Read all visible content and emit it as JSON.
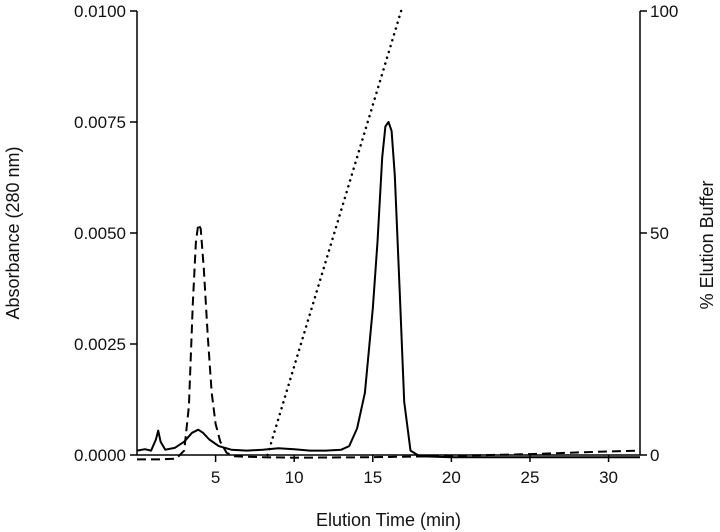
{
  "chart_data": {
    "type": "line",
    "xlabel": "Elution Time (min)",
    "ylabel_left": "Absorbance (280 nm)",
    "ylabel_right": "% Elution Buffer",
    "xlim": [
      0,
      32
    ],
    "ylim_left": [
      0,
      0.01
    ],
    "ylim_right": [
      0,
      100
    ],
    "grid": false,
    "x_ticks": [
      5,
      10,
      15,
      20,
      25,
      30
    ],
    "x_tick_labels": [
      "5",
      "10",
      "15",
      "20",
      "25",
      "30"
    ],
    "y_left_ticks": [
      0,
      0.0025,
      0.005,
      0.0075,
      0.01
    ],
    "y_left_tick_labels": [
      "0.0000",
      "0.0025",
      "0.0050",
      "0.0075",
      "0.0100"
    ],
    "y_right_ticks": [
      0,
      50,
      100
    ],
    "y_right_tick_labels": [
      "0",
      "50",
      "100"
    ],
    "series": [
      {
        "axis": "left",
        "style": "solid",
        "x": [
          0,
          0.5,
          0.9,
          1.2,
          1.35,
          1.5,
          1.8,
          2.4,
          3.0,
          3.5,
          3.9,
          4.2,
          4.6,
          5.2,
          6.0,
          7.0,
          8.0,
          9.0,
          10.0,
          11.0,
          12.0,
          13.0,
          13.5,
          14.0,
          14.5,
          15.0,
          15.3,
          15.6,
          15.8,
          16.0,
          16.2,
          16.4,
          16.7,
          17.0,
          17.4,
          18,
          20,
          25,
          32
        ],
        "y": [
          0.0001,
          0.00013,
          0.0001,
          0.00035,
          0.00055,
          0.0003,
          0.00012,
          0.00016,
          0.0003,
          0.0005,
          0.00057,
          0.0005,
          0.00035,
          0.0002,
          0.00012,
          0.0001,
          0.00012,
          0.00015,
          0.00013,
          0.0001,
          0.0001,
          0.00012,
          0.0002,
          0.0006,
          0.0014,
          0.0033,
          0.0048,
          0.0067,
          0.0074,
          0.0075,
          0.0073,
          0.0063,
          0.0038,
          0.0012,
          0.0001,
          -3e-05,
          -5e-05,
          -5e-05,
          -5e-05
        ]
      },
      {
        "axis": "left",
        "style": "dashed",
        "x": [
          0,
          1.5,
          2.5,
          3.0,
          3.3,
          3.55,
          3.75,
          3.9,
          4.05,
          4.25,
          4.5,
          4.75,
          5.0,
          5.3,
          5.7,
          6.2,
          8,
          10,
          15,
          20,
          25,
          30,
          32
        ],
        "y": [
          -0.0001,
          -0.0001,
          -8e-05,
          0.0001,
          0.0011,
          0.0034,
          0.0048,
          0.0052,
          0.0051,
          0.0042,
          0.0027,
          0.0014,
          0.0007,
          0.0003,
          5e-05,
          -3e-05,
          -5e-05,
          -6e-05,
          -5e-05,
          -2e-05,
          2e-05,
          8e-05,
          0.0001
        ]
      },
      {
        "axis": "right",
        "style": "dotted",
        "x": [
          8.3,
          16.8
        ],
        "y": [
          0,
          100
        ]
      }
    ]
  }
}
